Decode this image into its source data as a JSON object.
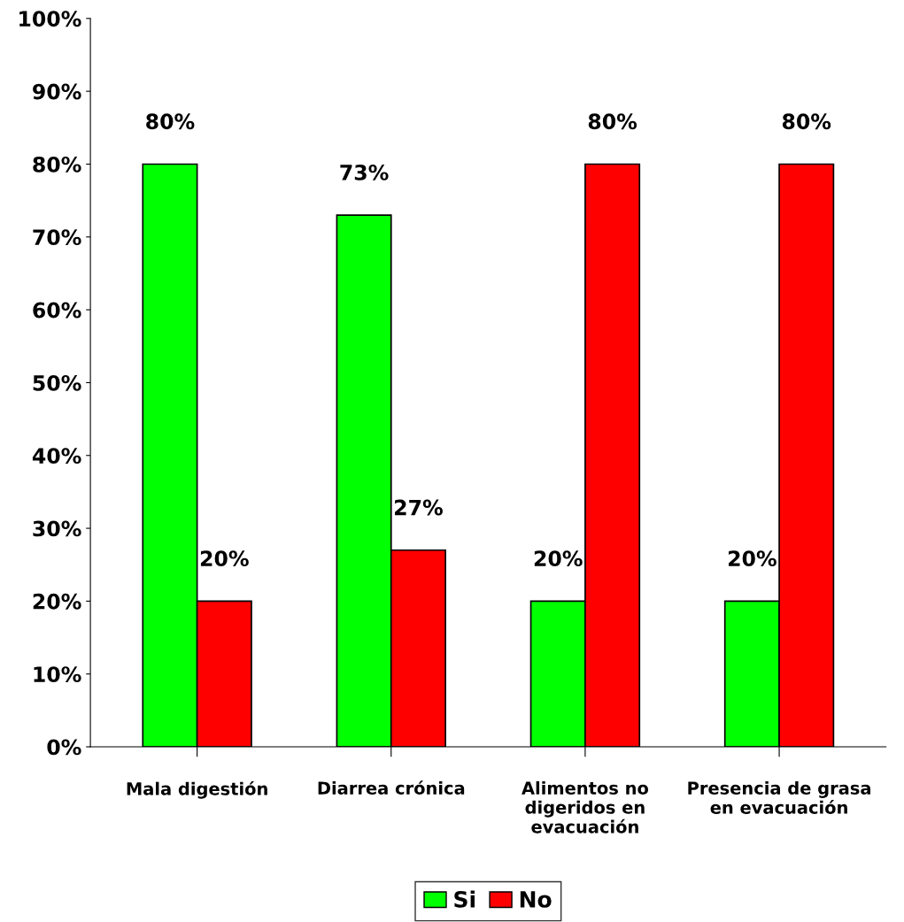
{
  "chart_data": {
    "type": "bar",
    "categories": [
      "Mala digestión",
      "Diarrea crónica",
      "Alimentos no\ndigeridos en\nevacuación",
      "Presencia de grasa\nen evacuación"
    ],
    "series": [
      {
        "name": "Si",
        "color": "#00ff00",
        "values": [
          80,
          73,
          20,
          20
        ],
        "value_labels": [
          "80%",
          "73%",
          "20%",
          "20%"
        ]
      },
      {
        "name": "No",
        "color": "#ff0000",
        "values": [
          20,
          27,
          80,
          80
        ],
        "value_labels": [
          "20%",
          "27%",
          "80%",
          "80%"
        ]
      }
    ],
    "ylim": [
      0,
      100
    ],
    "yticks": [
      {
        "value": 0,
        "label": "0%"
      },
      {
        "value": 10,
        "label": "10%"
      },
      {
        "value": 20,
        "label": "20%"
      },
      {
        "value": 30,
        "label": "30%"
      },
      {
        "value": 40,
        "label": "40%"
      },
      {
        "value": 50,
        "label": "50%"
      },
      {
        "value": 60,
        "label": "60%"
      },
      {
        "value": 70,
        "label": "70%"
      },
      {
        "value": 80,
        "label": "80%"
      },
      {
        "value": 90,
        "label": "90%"
      },
      {
        "value": 100,
        "label": "100%"
      }
    ],
    "grid": false,
    "legend": "bottom"
  }
}
